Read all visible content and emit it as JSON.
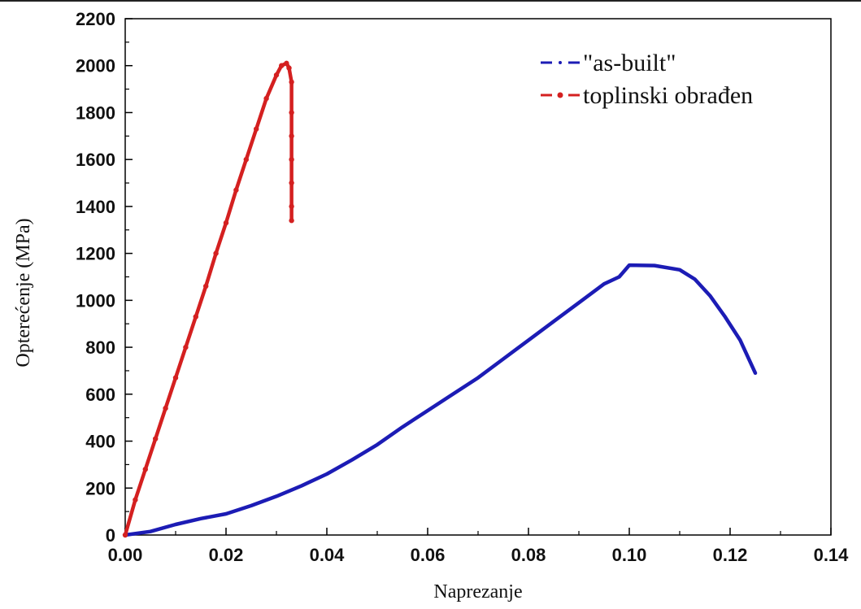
{
  "chart_data": {
    "type": "line",
    "xlabel": "Naprezanje",
    "ylabel": "Opterećenje (MPa)",
    "xlim": [
      0.0,
      0.14
    ],
    "ylim": [
      0,
      2200
    ],
    "x_ticks": [
      "0.00",
      "0.02",
      "0.04",
      "0.06",
      "0.08",
      "0.10",
      "0.12",
      "0.14"
    ],
    "y_ticks": [
      "0",
      "200",
      "400",
      "600",
      "800",
      "1000",
      "1200",
      "1400",
      "1600",
      "1800",
      "2000",
      "2200"
    ],
    "grid": false,
    "legend_position": "top-right",
    "series": [
      {
        "name": "\"as-built\"",
        "color": "#1c1cb5",
        "style": "dash-dot",
        "x": [
          0.0,
          0.005,
          0.01,
          0.015,
          0.02,
          0.025,
          0.03,
          0.035,
          0.04,
          0.045,
          0.05,
          0.055,
          0.06,
          0.065,
          0.07,
          0.075,
          0.08,
          0.085,
          0.09,
          0.095,
          0.098,
          0.1,
          0.105,
          0.11,
          0.113,
          0.116,
          0.119,
          0.122,
          0.125
        ],
        "y": [
          0,
          15,
          45,
          70,
          90,
          125,
          165,
          210,
          260,
          320,
          385,
          460,
          530,
          600,
          670,
          750,
          830,
          910,
          990,
          1070,
          1100,
          1150,
          1148,
          1130,
          1090,
          1020,
          930,
          830,
          690
        ]
      },
      {
        "name": "toplinski obrađen",
        "color": "#d42020",
        "style": "dash-dot-marker",
        "x": [
          0.0,
          0.002,
          0.004,
          0.006,
          0.008,
          0.01,
          0.012,
          0.014,
          0.016,
          0.018,
          0.02,
          0.022,
          0.024,
          0.026,
          0.028,
          0.03,
          0.031,
          0.032,
          0.0325,
          0.033,
          0.033,
          0.033,
          0.033,
          0.033,
          0.033,
          0.033
        ],
        "y": [
          0,
          150,
          280,
          410,
          540,
          670,
          800,
          930,
          1060,
          1200,
          1330,
          1470,
          1600,
          1730,
          1860,
          1960,
          2000,
          2010,
          1990,
          1930,
          1800,
          1700,
          1600,
          1500,
          1400,
          1340
        ]
      }
    ]
  }
}
